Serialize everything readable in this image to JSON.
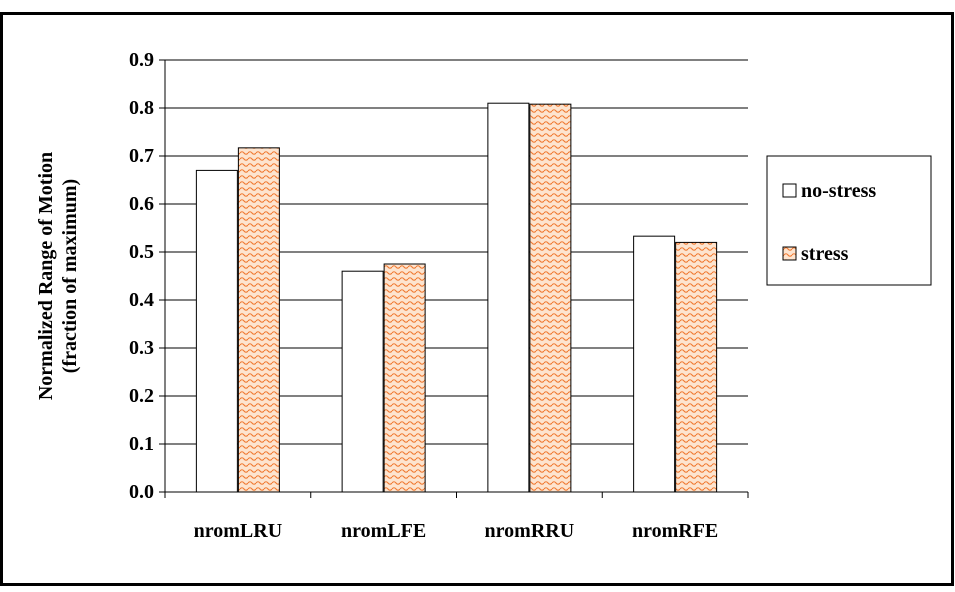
{
  "chart_data": {
    "type": "bar",
    "title": "",
    "xlabel": "",
    "ylabel_line1": "Normalized Range of Motion",
    "ylabel_line2": "(fraction of maximum)",
    "ylim": [
      0,
      0.9
    ],
    "yticks": [
      "0.0",
      "0.1",
      "0.2",
      "0.3",
      "0.4",
      "0.5",
      "0.6",
      "0.7",
      "0.8",
      "0.9"
    ],
    "grid": "horizontal",
    "legend_position": "right",
    "categories": [
      "nromLRU",
      "nromLFE",
      "nromRRU",
      "nromRFE"
    ],
    "series": [
      {
        "name": "no-stress",
        "values": [
          0.67,
          0.46,
          0.81,
          0.533
        ],
        "fill": "#ffffff",
        "pattern": "none"
      },
      {
        "name": "stress",
        "values": [
          0.717,
          0.475,
          0.808,
          0.52
        ],
        "fill": "#fde4cf",
        "pattern": "wave",
        "pattern_color": "#f07a32"
      }
    ]
  }
}
